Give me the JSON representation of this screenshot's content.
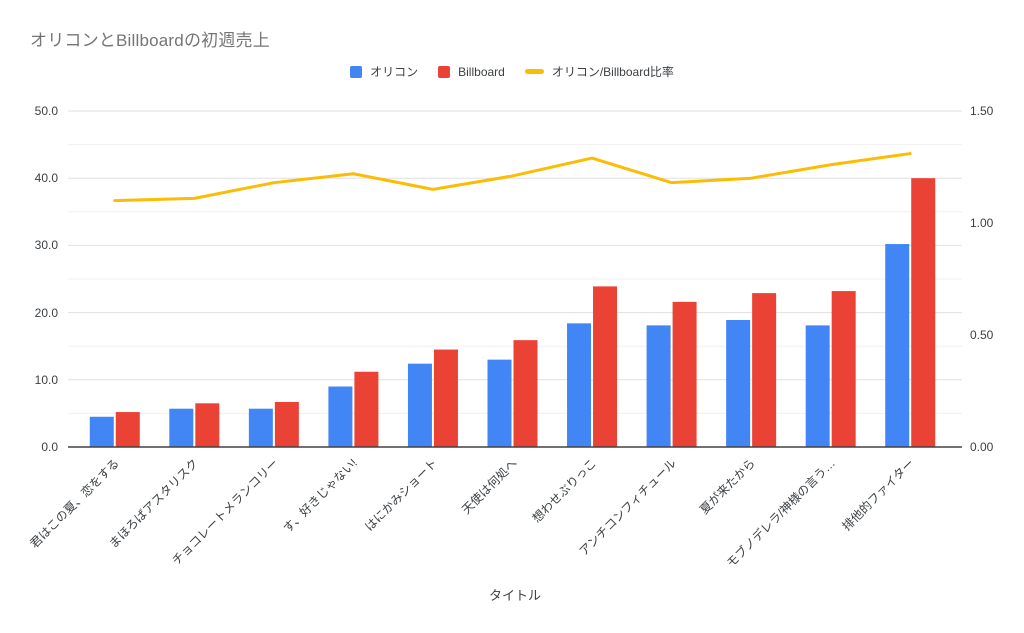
{
  "chart_data": {
    "type": "combo-bar-line",
    "title": "オリコンとBillboardの初週売上",
    "xlabel": "タイトル",
    "legend_position": "top",
    "grid": {
      "major_step": 10,
      "minor_step": 5
    },
    "categories": [
      "君はこの夏、恋をする",
      "まほろばアスタリスク",
      "チョコレートメランコリー",
      "す、好きじゃない!",
      "はにかみショート",
      "天使は何処へ",
      "想わせぶりっこ",
      "アンチコンフィチュール",
      "夏が来たから",
      "モブノデレラ/神様の言う…",
      "排他的ファイター"
    ],
    "series": [
      {
        "id": "oricon",
        "name": "オリコン",
        "type": "bar",
        "axis": "left",
        "color": "#4285F4",
        "values": [
          4.5,
          5.7,
          5.7,
          9.0,
          12.4,
          13.0,
          18.4,
          18.1,
          18.9,
          18.1,
          30.2
        ]
      },
      {
        "id": "billboard",
        "name": "Billboard",
        "type": "bar",
        "axis": "left",
        "color": "#EA4335",
        "values": [
          5.2,
          6.5,
          6.7,
          11.2,
          14.5,
          15.9,
          23.9,
          21.6,
          22.9,
          23.2,
          40.0
        ]
      },
      {
        "id": "ratio",
        "name": "オリコン/Billboard比率",
        "type": "line",
        "axis": "right",
        "color": "#FBBC04",
        "values": [
          1.1,
          1.11,
          1.18,
          1.22,
          1.15,
          1.21,
          1.29,
          1.18,
          1.2,
          1.26,
          1.31
        ]
      }
    ],
    "left_axis": {
      "min": 0,
      "max": 50,
      "ticks": [
        "0.0",
        "10.0",
        "20.0",
        "30.0",
        "40.0",
        "50.0"
      ]
    },
    "right_axis": {
      "min": 0,
      "max": 1.5,
      "ticks": [
        "0.00",
        "0.50",
        "1.00",
        "1.50"
      ]
    }
  }
}
